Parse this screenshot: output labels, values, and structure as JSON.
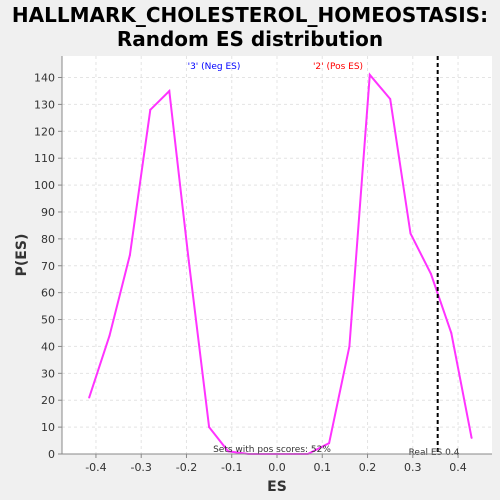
{
  "chart_data": {
    "type": "line",
    "title": "HALLMARK_CHOLESTEROL_HOMEOSTASIS:",
    "subtitle": "Random ES distribution",
    "xlabel": "ES",
    "ylabel": "P(ES)",
    "xlim": [
      -0.475,
      0.475
    ],
    "ylim": [
      0,
      148
    ],
    "xticks": [
      -0.4,
      -0.3,
      -0.2,
      -0.1,
      0.0,
      0.1,
      0.2,
      0.3,
      0.4
    ],
    "xtick_labels": [
      "-0.4",
      "-0.3",
      "-0.2",
      "-0.1",
      "0.0",
      "0.1",
      "0.2",
      "0.3",
      "0.4"
    ],
    "yticks": [
      0,
      10,
      20,
      30,
      40,
      50,
      60,
      70,
      80,
      90,
      100,
      110,
      120,
      130,
      140
    ],
    "ytick_labels": [
      "0",
      "10",
      "20",
      "30",
      "40",
      "50",
      "60",
      "70",
      "80",
      "90",
      "100",
      "110",
      "120",
      "130",
      "140"
    ],
    "grid": true,
    "series": [
      {
        "color": "#ff33ff",
        "x": [
          -0.415,
          -0.37,
          -0.325,
          -0.28,
          -0.238,
          -0.195,
          -0.15,
          -0.108,
          -0.063,
          -0.02,
          0.025,
          0.068,
          0.115,
          0.16,
          0.205,
          0.25,
          0.295,
          0.34,
          0.385,
          0.43
        ],
        "y": [
          21,
          44,
          74,
          128,
          135,
          72,
          10,
          1,
          0,
          0,
          0,
          0,
          4,
          40,
          141,
          132,
          82,
          67,
          45,
          6
        ]
      }
    ],
    "annotations": {
      "neg_label": "'3' (Neg ES)",
      "pos_label": "'2' (Pos ES)",
      "pos_sets": "Sets with pos scores: 52%",
      "real_es": "Real ES 0.4",
      "neg_color": "#0000ff",
      "pos_color": "#ff0000"
    },
    "real_es_value": 0.355
  }
}
